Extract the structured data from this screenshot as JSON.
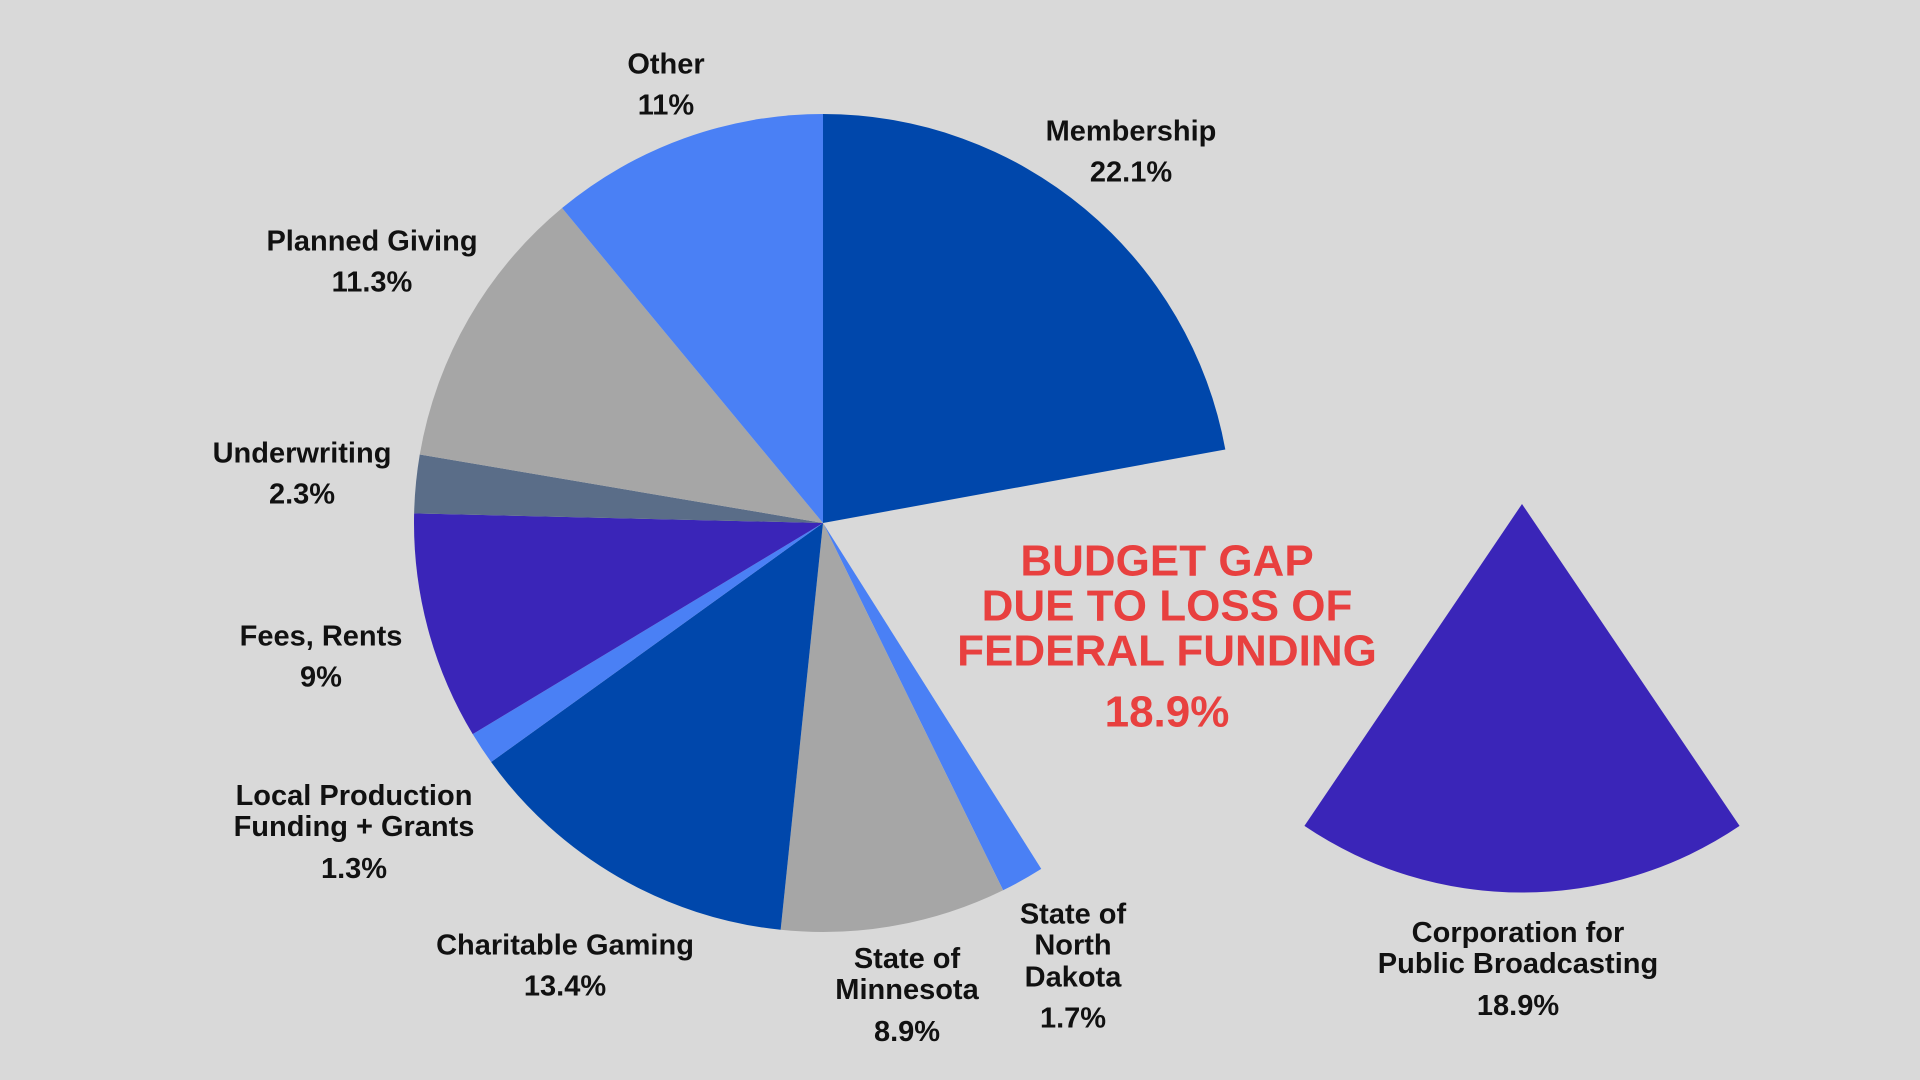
{
  "chart_data": {
    "type": "pie",
    "categories": [
      "Membership",
      "Corporation for\nPublic Broadcasting",
      "State of\nNorth\nDakota",
      "State of\nMinnesota",
      "Charitable Gaming",
      "Local Production\nFunding + Grants",
      "Fees, Rents",
      "Underwriting",
      "Planned Giving",
      "Other"
    ],
    "values": [
      22.1,
      18.9,
      1.7,
      8.9,
      13.4,
      1.3,
      9,
      2.3,
      11.3,
      11
    ],
    "value_labels": [
      "22.1%",
      "18.9%",
      "1.7%",
      "8.9%",
      "13.4%",
      "1.3%",
      "9%",
      "2.3%",
      "11.3%",
      "11%"
    ],
    "colors": [
      "#0047ab",
      "#3a25b8",
      "#4a80f5",
      "#a6a6a6",
      "#0047ab",
      "#4a80f5",
      "#3a25b8",
      "#5a6d88",
      "#a6a6a6",
      "#4a80f5"
    ],
    "exploded": 1,
    "annotation": {
      "text": "BUDGET GAP\nDUE TO LOSS OF\nFEDERAL FUNDING",
      "value_label": "18.9%",
      "color": "#e8403f"
    }
  }
}
